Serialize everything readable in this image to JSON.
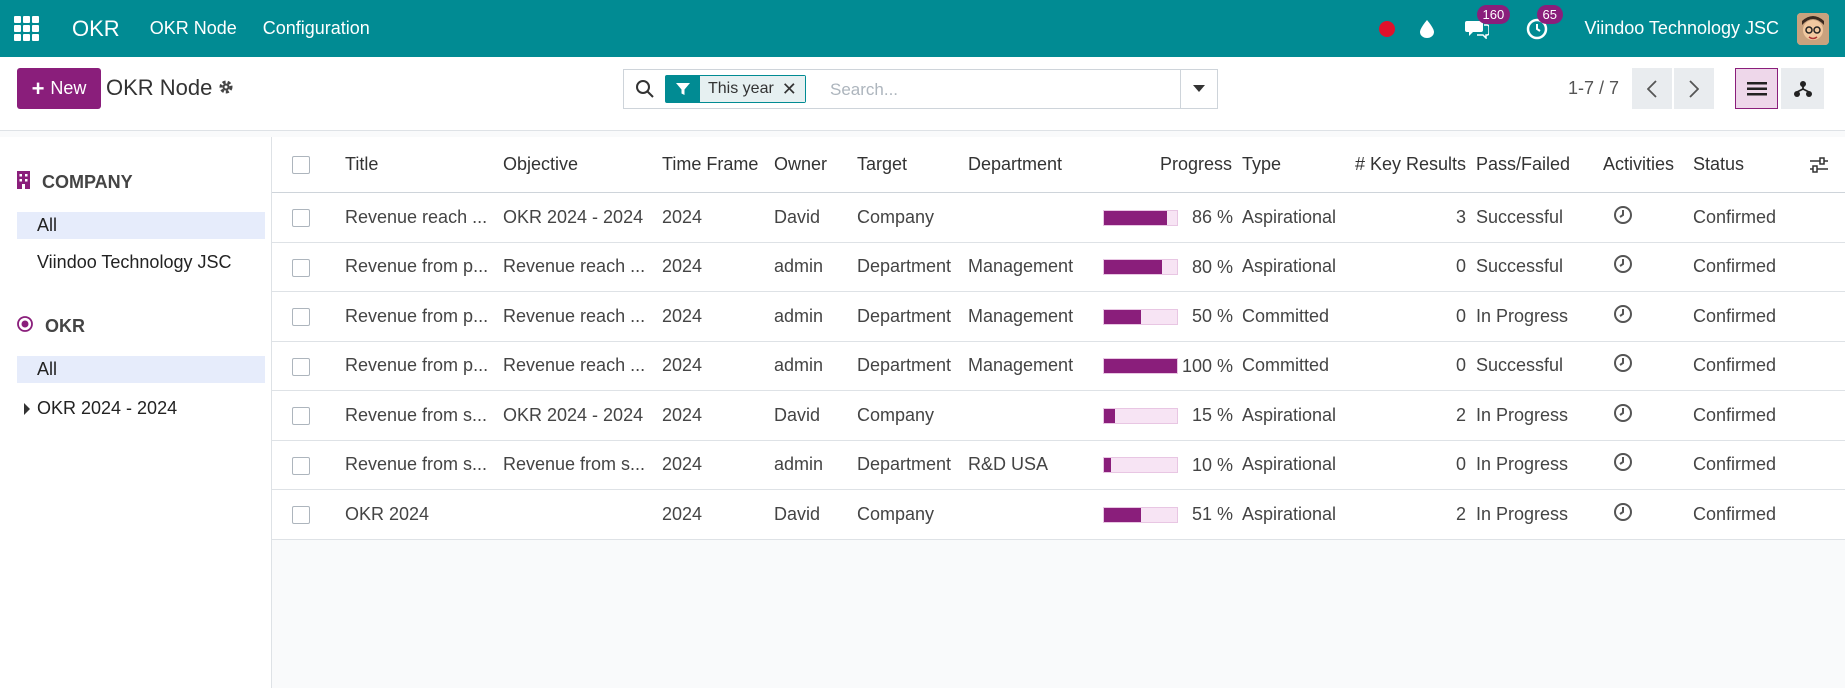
{
  "navbar": {
    "app_name": "OKR",
    "menu": [
      "OKR Node",
      "Configuration"
    ],
    "messages_count": "160",
    "activities_count": "65",
    "company": "Viindoo Technology JSC"
  },
  "control": {
    "new_label": "New",
    "title": "OKR Node",
    "filter_facet": "This year",
    "search_placeholder": "Search...",
    "pager": "1-7 / 7"
  },
  "sidebar": {
    "company_header": "COMPANY",
    "company_items": [
      "All",
      "Viindoo Technology JSC"
    ],
    "okr_header": "OKR",
    "okr_items": [
      "All",
      "OKR 2024 - 2024"
    ]
  },
  "table": {
    "columns": [
      "Title",
      "Objective",
      "Time Frame",
      "Owner",
      "Target",
      "Department",
      "Progress",
      "Type",
      "# Key Results",
      "Pass/Failed",
      "Activities",
      "Status"
    ],
    "rows": [
      {
        "title": "Revenue reach ...",
        "objective": "OKR 2024 - 2024",
        "timeframe": "2024",
        "owner": "David",
        "target": "Company",
        "department": "",
        "progress": 86,
        "progress_label": "86 %",
        "type": "Aspirational",
        "key_results": "3",
        "pass": "Successful",
        "status": "Confirmed"
      },
      {
        "title": "Revenue from p...",
        "objective": "Revenue reach ...",
        "timeframe": "2024",
        "owner": "admin",
        "target": "Department",
        "department": "Management",
        "progress": 80,
        "progress_label": "80 %",
        "type": "Aspirational",
        "key_results": "0",
        "pass": "Successful",
        "status": "Confirmed"
      },
      {
        "title": "Revenue from p...",
        "objective": "Revenue reach ...",
        "timeframe": "2024",
        "owner": "admin",
        "target": "Department",
        "department": "Management",
        "progress": 50,
        "progress_label": "50 %",
        "type": "Committed",
        "key_results": "0",
        "pass": "In Progress",
        "status": "Confirmed"
      },
      {
        "title": "Revenue from p...",
        "objective": "Revenue reach ...",
        "timeframe": "2024",
        "owner": "admin",
        "target": "Department",
        "department": "Management",
        "progress": 100,
        "progress_label": "100 %",
        "type": "Committed",
        "key_results": "0",
        "pass": "Successful",
        "status": "Confirmed"
      },
      {
        "title": "Revenue from s...",
        "objective": "OKR 2024 - 2024",
        "timeframe": "2024",
        "owner": "David",
        "target": "Company",
        "department": "",
        "progress": 15,
        "progress_label": "15 %",
        "type": "Aspirational",
        "key_results": "2",
        "pass": "In Progress",
        "status": "Confirmed"
      },
      {
        "title": "Revenue from s...",
        "objective": "Revenue from s...",
        "timeframe": "2024",
        "owner": "admin",
        "target": "Department",
        "department": "R&D USA",
        "progress": 10,
        "progress_label": "10 %",
        "type": "Aspirational",
        "key_results": "0",
        "pass": "In Progress",
        "status": "Confirmed"
      },
      {
        "title": "OKR 2024",
        "objective": "",
        "timeframe": "2024",
        "owner": "David",
        "target": "Company",
        "department": "",
        "progress": 51,
        "progress_label": "51 %",
        "type": "Aspirational",
        "key_results": "2",
        "pass": "In Progress",
        "status": "Confirmed"
      }
    ]
  },
  "colors": {
    "topbar": "#018b93",
    "primary": "#8a1e7b",
    "record": "#e0112b"
  }
}
